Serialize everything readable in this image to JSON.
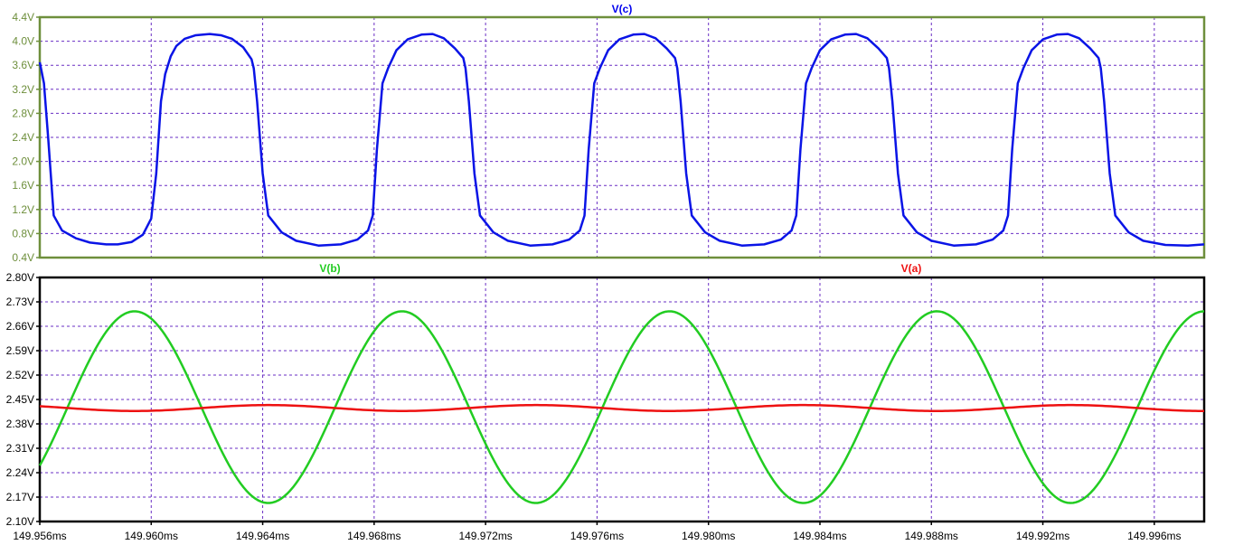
{
  "chart_data": [
    {
      "type": "line",
      "title": "V(c)",
      "title_color": "#0000ee",
      "axis_color": "#6e8f3c",
      "grid": true,
      "grid_color": "#6a2fc4",
      "ylim": [
        0.4,
        4.4
      ],
      "yticks": [
        0.4,
        0.8,
        1.2,
        1.6,
        2.0,
        2.4,
        2.8,
        3.2,
        3.6,
        4.0,
        4.4
      ],
      "ytick_labels": [
        "0.4V",
        "0.8V",
        "1.2V",
        "1.6V",
        "2.0V",
        "2.4V",
        "2.8V",
        "3.2V",
        "3.6V",
        "4.0V",
        "4.4V"
      ],
      "series": [
        {
          "name": "V(c)",
          "color": "#0a14e6",
          "x": [
            149.956,
            149.95615,
            149.9563,
            149.9565,
            149.9568,
            149.9573,
            149.9578,
            149.95838,
            149.9588,
            149.9593,
            149.9597,
            149.96,
            149.96018,
            149.96035,
            149.9605,
            149.9607,
            149.9609,
            149.9612,
            149.9616,
            149.9621,
            149.9625,
            149.9629,
            149.9633,
            149.9636,
            149.96368,
            149.9638,
            149.964,
            149.9642,
            149.96468,
            149.9652,
            149.966,
            149.9668,
            149.9674,
            149.96778,
            149.96795,
            149.9681,
            149.9683,
            149.9685,
            149.9688,
            149.9692,
            149.9697,
            149.9701,
            149.9705,
            149.9709,
            149.9712,
            149.97128,
            149.9714,
            149.9716,
            149.9718,
            149.97228,
            149.9728,
            149.9736,
            149.9744,
            149.975,
            149.97538,
            149.97555,
            149.9757,
            149.9759,
            149.9761,
            149.9764,
            149.9768,
            149.9773,
            149.9777,
            149.9781,
            149.9785,
            149.9788,
            149.97888,
            149.979,
            149.9792,
            149.9794,
            149.97988,
            149.9804,
            149.9812,
            149.982,
            149.9826,
            149.98298,
            149.98315,
            149.9833,
            149.9835,
            149.9837,
            149.984,
            149.9844,
            149.9849,
            149.9853,
            149.9857,
            149.9861,
            149.9864,
            149.98648,
            149.9866,
            149.9868,
            149.987,
            149.98748,
            149.988,
            149.9888,
            149.9896,
            149.9902,
            149.99058,
            149.99075,
            149.9909,
            149.9911,
            149.9913,
            149.9916,
            149.992,
            149.9925,
            149.9929,
            149.9933,
            149.9937,
            149.994,
            149.99408,
            149.9942,
            149.9944,
            149.9946,
            149.99508,
            149.9956,
            149.9964,
            149.9972,
            149.99779
          ],
          "y": [
            3.65,
            3.3,
            2.4,
            1.1,
            0.85,
            0.72,
            0.65,
            0.62,
            0.62,
            0.66,
            0.78,
            1.05,
            1.8,
            3.0,
            3.45,
            3.75,
            3.92,
            4.04,
            4.1,
            4.12,
            4.1,
            4.04,
            3.9,
            3.7,
            3.55,
            3.0,
            1.8,
            1.1,
            0.82,
            0.68,
            0.6,
            0.62,
            0.7,
            0.85,
            1.1,
            2.2,
            3.3,
            3.55,
            3.85,
            4.03,
            4.11,
            4.12,
            4.05,
            3.88,
            3.72,
            3.55,
            3.0,
            1.8,
            1.1,
            0.82,
            0.68,
            0.6,
            0.62,
            0.7,
            0.85,
            1.1,
            2.2,
            3.3,
            3.55,
            3.85,
            4.03,
            4.11,
            4.12,
            4.05,
            3.88,
            3.72,
            3.55,
            3.0,
            1.8,
            1.1,
            0.82,
            0.68,
            0.6,
            0.62,
            0.7,
            0.85,
            1.1,
            2.2,
            3.3,
            3.55,
            3.85,
            4.03,
            4.11,
            4.12,
            4.05,
            3.88,
            3.72,
            3.55,
            3.0,
            1.8,
            1.1,
            0.82,
            0.68,
            0.6,
            0.62,
            0.7,
            0.85,
            1.1,
            2.2,
            3.3,
            3.55,
            3.85,
            4.03,
            4.11,
            4.12,
            4.05,
            3.88,
            3.72,
            3.55,
            3.0,
            1.8,
            1.1,
            0.82,
            0.68,
            0.61,
            0.6,
            0.62
          ]
        }
      ]
    },
    {
      "type": "line",
      "axis_color": "#000000",
      "grid": true,
      "grid_color": "#6a2fc4",
      "ylim": [
        2.1,
        2.8
      ],
      "yticks": [
        2.1,
        2.17,
        2.24,
        2.31,
        2.38,
        2.45,
        2.52,
        2.59,
        2.66,
        2.73,
        2.8
      ],
      "ytick_labels": [
        "2.10V",
        "2.17V",
        "2.24V",
        "2.31V",
        "2.38V",
        "2.45V",
        "2.52V",
        "2.59V",
        "2.66V",
        "2.73V",
        "2.80V"
      ],
      "xlim": [
        149.956,
        149.99779
      ],
      "xticks": [
        149.956,
        149.96,
        149.964,
        149.968,
        149.972,
        149.976,
        149.98,
        149.984,
        149.988,
        149.992,
        149.996
      ],
      "xtick_labels": [
        "149.956ms",
        "149.960ms",
        "149.964ms",
        "149.968ms",
        "149.972ms",
        "149.976ms",
        "149.980ms",
        "149.984ms",
        "149.988ms",
        "149.992ms",
        "149.996ms"
      ],
      "series": [
        {
          "name": "V(b)",
          "color": "#22cc22",
          "wave": "sine",
          "amplitude": 0.275,
          "offset": 2.428,
          "period_ms": 0.0096,
          "peak_at_ms": 149.9594,
          "samples": 400
        },
        {
          "name": "V(a)",
          "color": "#ee1111",
          "wave": "sine",
          "amplitude": 0.0085,
          "offset": 2.4255,
          "period_ms": 0.0096,
          "peak_at_ms": 149.9642,
          "samples": 400
        }
      ]
    }
  ]
}
